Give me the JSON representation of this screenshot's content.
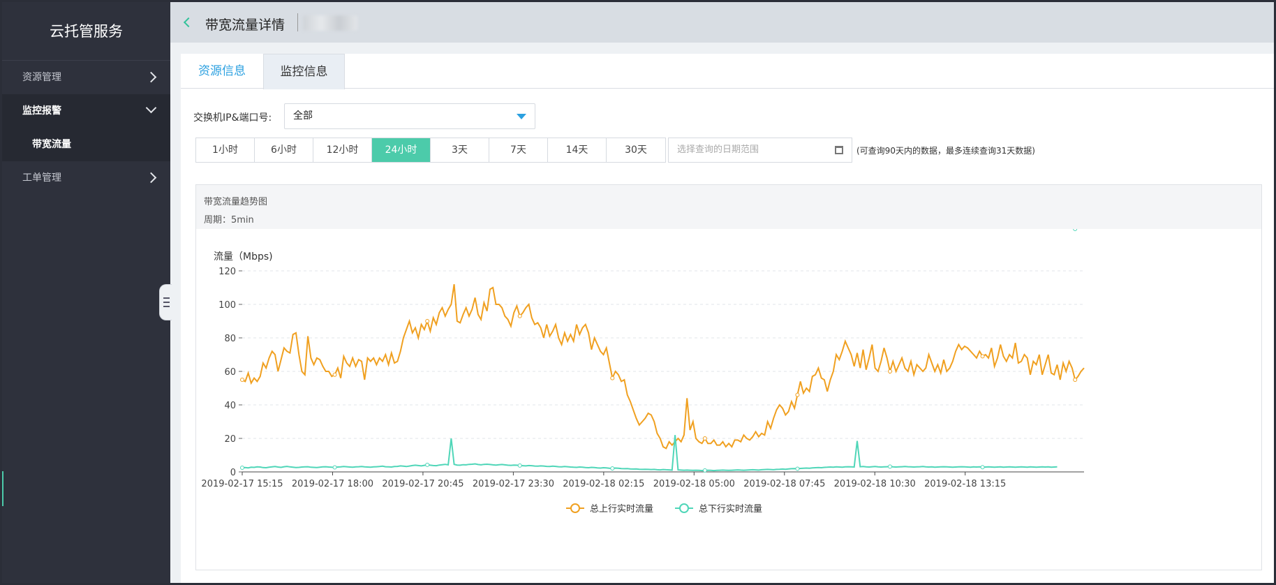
{
  "sidebar": {
    "brand": "云托管服务",
    "items": [
      {
        "label": "资源管理"
      },
      {
        "label": "监控报警"
      },
      {
        "label": "带宽流量"
      },
      {
        "label": "工单管理"
      }
    ]
  },
  "header": {
    "title": "带宽流量详情"
  },
  "tabs": [
    {
      "label": "资源信息"
    },
    {
      "label": "监控信息"
    }
  ],
  "filter": {
    "label": "交换机IP&端口号:",
    "selected": "全部"
  },
  "ranges": [
    "1小时",
    "6小时",
    "12小时",
    "24小时",
    "3天",
    "7天",
    "14天",
    "30天"
  ],
  "active_range": "24小时",
  "date_picker": {
    "placeholder": "选择查询的日期范围"
  },
  "hint": "(可查询90天内的数据，最多连续查询31天数据)",
  "chart_header": {
    "title": "带宽流量趋势图",
    "period": "周期：5min"
  },
  "colors": {
    "accent": "#4ccbaa",
    "link": "#2ba0e0",
    "up": "#f0a020",
    "down": "#4fd6b8"
  },
  "chart_data": {
    "type": "line",
    "title": "",
    "ylabel": "流量（Mbps)",
    "ylim": [
      0,
      120
    ],
    "yticks": [
      0,
      20,
      40,
      60,
      80,
      100,
      120
    ],
    "xticks": [
      "2019-02-17 15:15",
      "2019-02-17 18:00",
      "2019-02-17 20:45",
      "2019-02-17 23:30",
      "2019-02-18 02:15",
      "2019-02-18 05:00",
      "2019-02-18 07:45",
      "2019-02-18 10:30",
      "2019-02-18 13:15"
    ],
    "grid": true,
    "legend": "bottom",
    "series": [
      {
        "name": "总上行实时流量",
        "values": [
          55,
          54,
          59,
          53,
          56,
          54,
          57,
          65,
          62,
          68,
          72,
          70,
          60,
          67,
          74,
          72,
          71,
          82,
          83,
          70,
          60,
          58,
          81,
          68,
          64,
          68,
          67,
          63,
          60,
          60,
          57,
          58,
          62,
          56,
          69,
          65,
          63,
          68,
          63,
          67,
          66,
          55,
          68,
          66,
          68,
          64,
          68,
          66,
          70,
          64,
          71,
          65,
          66,
          72,
          80,
          85,
          90,
          83,
          86,
          80,
          88,
          85,
          90,
          84,
          92,
          88,
          95,
          98,
          93,
          97,
          100,
          112,
          90,
          89,
          94,
          98,
          93,
          97,
          104,
          94,
          91,
          101,
          96,
          109,
          110,
          100,
          100,
          98,
          93,
          91,
          87,
          95,
          99,
          93,
          95,
          98,
          100,
          92,
          88,
          89,
          86,
          80,
          88,
          81,
          84,
          88,
          80,
          76,
          83,
          78,
          82,
          78,
          88,
          82,
          86,
          88,
          83,
          73,
          80,
          76,
          72,
          70,
          74,
          65,
          56,
          60,
          58,
          54,
          55,
          46,
          42,
          37,
          32,
          28,
          30,
          32,
          35,
          34,
          30,
          23,
          20,
          15,
          14,
          18,
          16,
          18,
          20,
          18,
          22,
          44,
          25,
          30,
          20,
          18,
          17,
          20,
          17,
          17,
          19,
          16,
          16,
          18,
          15,
          17,
          15,
          19,
          19,
          18,
          22,
          20,
          19,
          21,
          24,
          21,
          23,
          22,
          30,
          26,
          32,
          37,
          40,
          38,
          34,
          36,
          42,
          38,
          46,
          54,
          47,
          50,
          48,
          57,
          58,
          62,
          56,
          55,
          48,
          55,
          60,
          70,
          67,
          72,
          78,
          74,
          70,
          63,
          71,
          62,
          73,
          61,
          68,
          76,
          62,
          60,
          66,
          74,
          68,
          60,
          66,
          60,
          64,
          68,
          62,
          60,
          66,
          58,
          64,
          62,
          60,
          62,
          70,
          65,
          60,
          64,
          59,
          67,
          60,
          62,
          66,
          72,
          76,
          73,
          75,
          74,
          72,
          70,
          68,
          72,
          69,
          70,
          68,
          74,
          63,
          68,
          76,
          69,
          66,
          70,
          68,
          77,
          65,
          66,
          70,
          68,
          58,
          66,
          64,
          70,
          58,
          64,
          70,
          59,
          58,
          64,
          55,
          65,
          60,
          66,
          62,
          55,
          57,
          60,
          62
        ]
      },
      {
        "name": "总下行实时流量",
        "values": [
          2.5,
          2.6,
          2.4,
          2.8,
          2.7,
          3,
          2.9,
          2.6,
          2.5,
          2.8,
          3,
          3.2,
          2.9,
          2.7,
          3.1,
          3.3,
          3,
          2.8,
          2.6,
          2.7,
          2.9,
          3,
          3.1,
          2.8,
          2.7,
          2.6,
          2.8,
          3,
          3.1,
          2.9,
          2.8,
          2.7,
          2.9,
          3,
          3.2,
          3.1,
          2.9,
          2.8,
          3,
          3.1,
          3.2,
          3,
          2.9,
          2.8,
          3,
          3.1,
          3.2,
          3.4,
          3.1,
          3,
          2.9,
          3.2,
          3.3,
          3.6,
          3.4,
          3.2,
          3.5,
          3.8,
          4,
          3.8,
          3.6,
          3.9,
          4.2,
          4,
          3.8,
          3.7,
          4.1,
          4.3,
          4.5,
          4.2,
          20,
          4.5,
          4.1,
          4,
          4.3,
          4.2,
          4.5,
          4.6,
          4.8,
          4.4,
          4.2,
          4.5,
          4.6,
          4.4,
          4.2,
          4.1,
          4.3,
          4.4,
          4.2,
          4,
          3.9,
          4.1,
          4,
          3.8,
          3.7,
          3.6,
          3.8,
          3.7,
          3.5,
          3.4,
          3.6,
          3.5,
          3.3,
          3.2,
          3.4,
          3.3,
          3.1,
          3,
          3.2,
          3.1,
          2.9,
          2.8,
          2.7,
          2.9,
          2.8,
          2.6,
          2.5,
          2.7,
          2.6,
          2.4,
          2.3,
          2.5,
          2.4,
          2.2,
          2.1,
          2.3,
          2.2,
          2,
          1.9,
          2,
          1.8,
          1.7,
          1.8,
          1.6,
          1.5,
          1.6,
          1.5,
          1.4,
          1.5,
          1.3,
          1.2,
          1.4,
          1.3,
          1.2,
          1.1,
          22,
          1.2,
          1.1,
          1,
          1.1,
          1,
          0.9,
          1,
          0.9,
          0.8,
          0.9,
          1,
          0.9,
          0.8,
          0.9,
          1,
          1.1,
          1,
          0.9,
          1,
          1.1,
          1.2,
          1.1,
          1,
          1.1,
          1.2,
          1.3,
          1.2,
          1.1,
          1.3,
          1.4,
          1.5,
          1.4,
          1.3,
          1.5,
          1.6,
          1.7,
          1.6,
          1.8,
          1.9,
          2,
          1.9,
          2.1,
          2.2,
          2.3,
          2.2,
          2.4,
          2.5,
          2.6,
          2.5,
          2.7,
          2.8,
          2.9,
          2.8,
          3,
          2.9,
          2.8,
          3,
          3.1,
          3,
          2.9,
          18.5,
          3.1,
          3.2,
          3,
          2.9,
          3.1,
          3.2,
          3,
          2.9,
          3,
          3.1,
          3.2,
          3,
          2.9,
          3,
          3.1,
          3.2,
          3.1,
          3,
          2.9,
          3,
          3.1,
          3.2,
          3,
          2.9,
          3,
          2.8,
          2.9,
          3,
          3.1,
          3,
          2.9,
          2.8,
          2.9,
          3,
          3.1,
          3,
          2.9,
          2.8,
          3,
          2.9,
          3,
          2.8,
          2.9,
          3,
          2.9,
          2.8,
          2.9,
          3,
          2.8,
          2.9,
          3,
          2.9,
          2.8,
          2.9,
          3,
          2.9,
          2.8,
          3,
          2.9,
          2.8,
          2.9,
          3,
          2.9,
          3,
          2.8,
          2.9,
          3
        ]
      }
    ]
  }
}
